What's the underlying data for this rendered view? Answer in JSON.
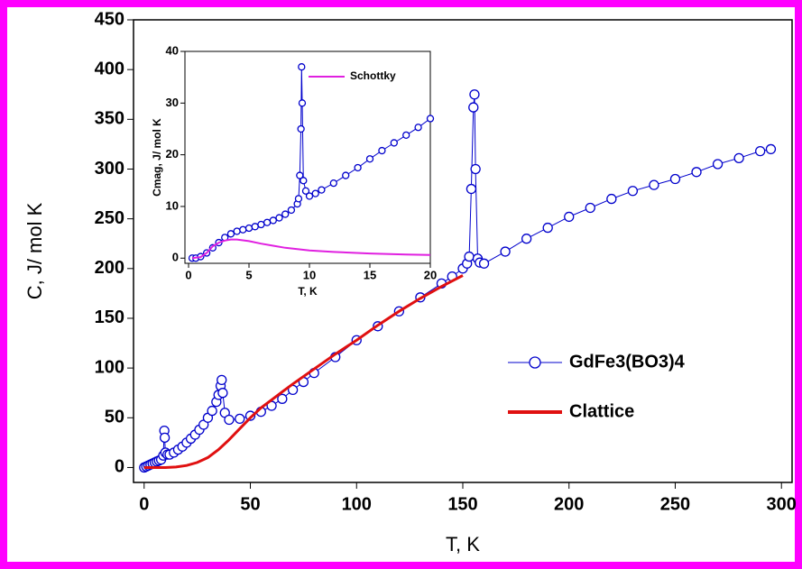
{
  "chart_data": [
    {
      "type": "line",
      "xlabel": "T, K",
      "ylabel": "C, J/ mol K",
      "xlim": [
        -5,
        305
      ],
      "ylim": [
        -15,
        450
      ],
      "xticks": [
        0,
        50,
        100,
        150,
        200,
        250,
        300
      ],
      "yticks": [
        0,
        50,
        100,
        150,
        200,
        250,
        300,
        350,
        400,
        450
      ],
      "legend": "center-right",
      "series": [
        {
          "name": "GdFe3(BO3)4",
          "color": "#0000cc",
          "marker": true,
          "x": [
            0,
            1,
            2,
            3,
            4,
            5,
            6,
            7,
            8,
            9,
            9.5,
            9.7,
            10,
            11,
            12,
            14,
            16,
            18,
            20,
            22,
            24,
            26,
            28,
            30,
            32,
            34,
            35,
            36,
            36.5,
            37,
            38,
            40,
            45,
            50,
            55,
            60,
            65,
            70,
            75,
            80,
            90,
            100,
            110,
            120,
            130,
            140,
            145,
            150,
            152,
            153,
            154,
            155,
            155.5,
            156,
            157,
            158,
            160,
            170,
            180,
            190,
            200,
            210,
            220,
            230,
            240,
            250,
            260,
            270,
            280,
            290,
            295
          ],
          "values": [
            0,
            1,
            2,
            3,
            4,
            5,
            6,
            7,
            8,
            12,
            37,
            30,
            15,
            13,
            13,
            15,
            18,
            21,
            25,
            29,
            33,
            38,
            43,
            50,
            57,
            66,
            73,
            82,
            88,
            75,
            55,
            48,
            49,
            52,
            56,
            62,
            69,
            78,
            86,
            95,
            111,
            128,
            142,
            157,
            171,
            185,
            192,
            200,
            205,
            212,
            280,
            362,
            375,
            300,
            210,
            206,
            205,
            217,
            230,
            241,
            252,
            261,
            270,
            278,
            284,
            290,
            297,
            305,
            311,
            318,
            320
          ]
        },
        {
          "name": "Clattice",
          "color": "#e01010",
          "marker": false,
          "x": [
            0,
            5,
            10,
            15,
            20,
            25,
            30,
            35,
            40,
            45,
            50,
            55,
            60,
            65,
            70,
            80,
            90,
            100,
            110,
            120,
            130,
            140,
            150
          ],
          "values": [
            0,
            0,
            0,
            0.5,
            2,
            5,
            10,
            18,
            28,
            39,
            50,
            60,
            68,
            76,
            84,
            99,
            114,
            128,
            143,
            157,
            170,
            182,
            193
          ]
        }
      ]
    },
    {
      "type": "line",
      "xlabel": "T, K",
      "ylabel": "Cmag, J/ mol K",
      "xlim": [
        -0.3,
        20
      ],
      "ylim": [
        -1,
        40
      ],
      "xticks": [
        0,
        5,
        10,
        15,
        20
      ],
      "yticks": [
        0,
        10,
        20,
        30,
        40
      ],
      "legend": "upper-right",
      "series": [
        {
          "name": "",
          "color": "#0000cc",
          "marker": true,
          "x": [
            0.3,
            0.6,
            1,
            1.5,
            2,
            2.5,
            3,
            3.5,
            4,
            4.5,
            5,
            5.5,
            6,
            6.5,
            7,
            7.5,
            8,
            8.5,
            9,
            9.1,
            9.2,
            9.3,
            9.35,
            9.4,
            9.5,
            9.7,
            10,
            10.5,
            11,
            12,
            13,
            14,
            15,
            16,
            17,
            18,
            19,
            20
          ],
          "values": [
            0,
            0,
            0.3,
            1,
            2,
            3,
            4,
            4.7,
            5.2,
            5.5,
            5.8,
            6.1,
            6.5,
            6.9,
            7.3,
            7.8,
            8.5,
            9.3,
            10.5,
            11.5,
            16,
            25,
            37,
            30,
            15,
            13,
            12,
            12.5,
            13.2,
            14.5,
            16,
            17.5,
            19.2,
            20.8,
            22.3,
            23.8,
            25.3,
            27
          ]
        },
        {
          "name": "Schottky",
          "color": "#e020e0",
          "marker": false,
          "x": [
            0.3,
            1,
            1.5,
            2,
            2.5,
            3,
            3.5,
            4,
            5,
            6,
            7,
            8,
            10,
            12,
            15,
            18,
            20
          ],
          "values": [
            0,
            0.2,
            1,
            2.3,
            3,
            3.4,
            3.6,
            3.6,
            3.3,
            2.8,
            2.4,
            2,
            1.5,
            1.2,
            0.9,
            0.7,
            0.6
          ]
        }
      ]
    }
  ]
}
